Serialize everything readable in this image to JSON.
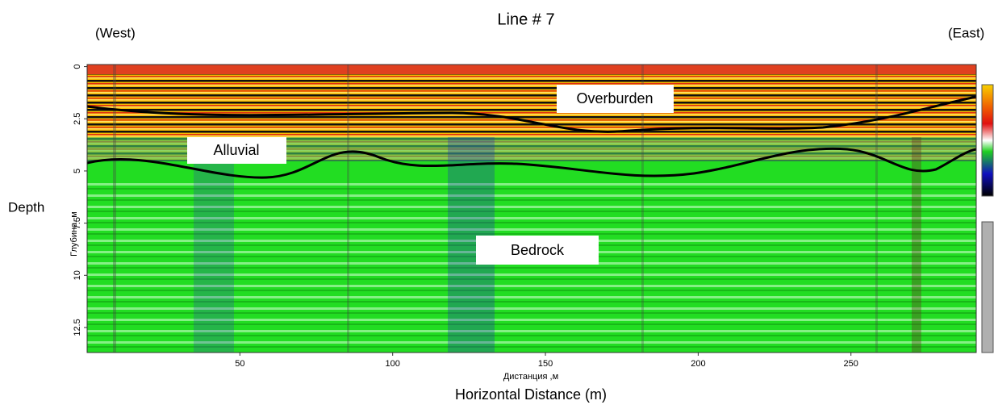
{
  "chart_data": {
    "type": "radargram",
    "title": "Line # 7",
    "left_label": "(West)",
    "right_label": "(East)",
    "xlabel": "Horizontal Distance (m)",
    "inner_xlabel": "Дистанция ,м",
    "ylabel": "Depth",
    "inner_ylabel": "Глубина, м",
    "annotations": [
      "Overburden",
      "Alluvial",
      "Bedrock"
    ],
    "xlim": [
      0,
      291
    ],
    "xticks": [
      50,
      100,
      150,
      200,
      250
    ],
    "ylim": [
      -0.1,
      13.7
    ],
    "yticks": [
      0,
      2.5,
      5,
      7.5,
      10,
      12.5
    ]
  }
}
